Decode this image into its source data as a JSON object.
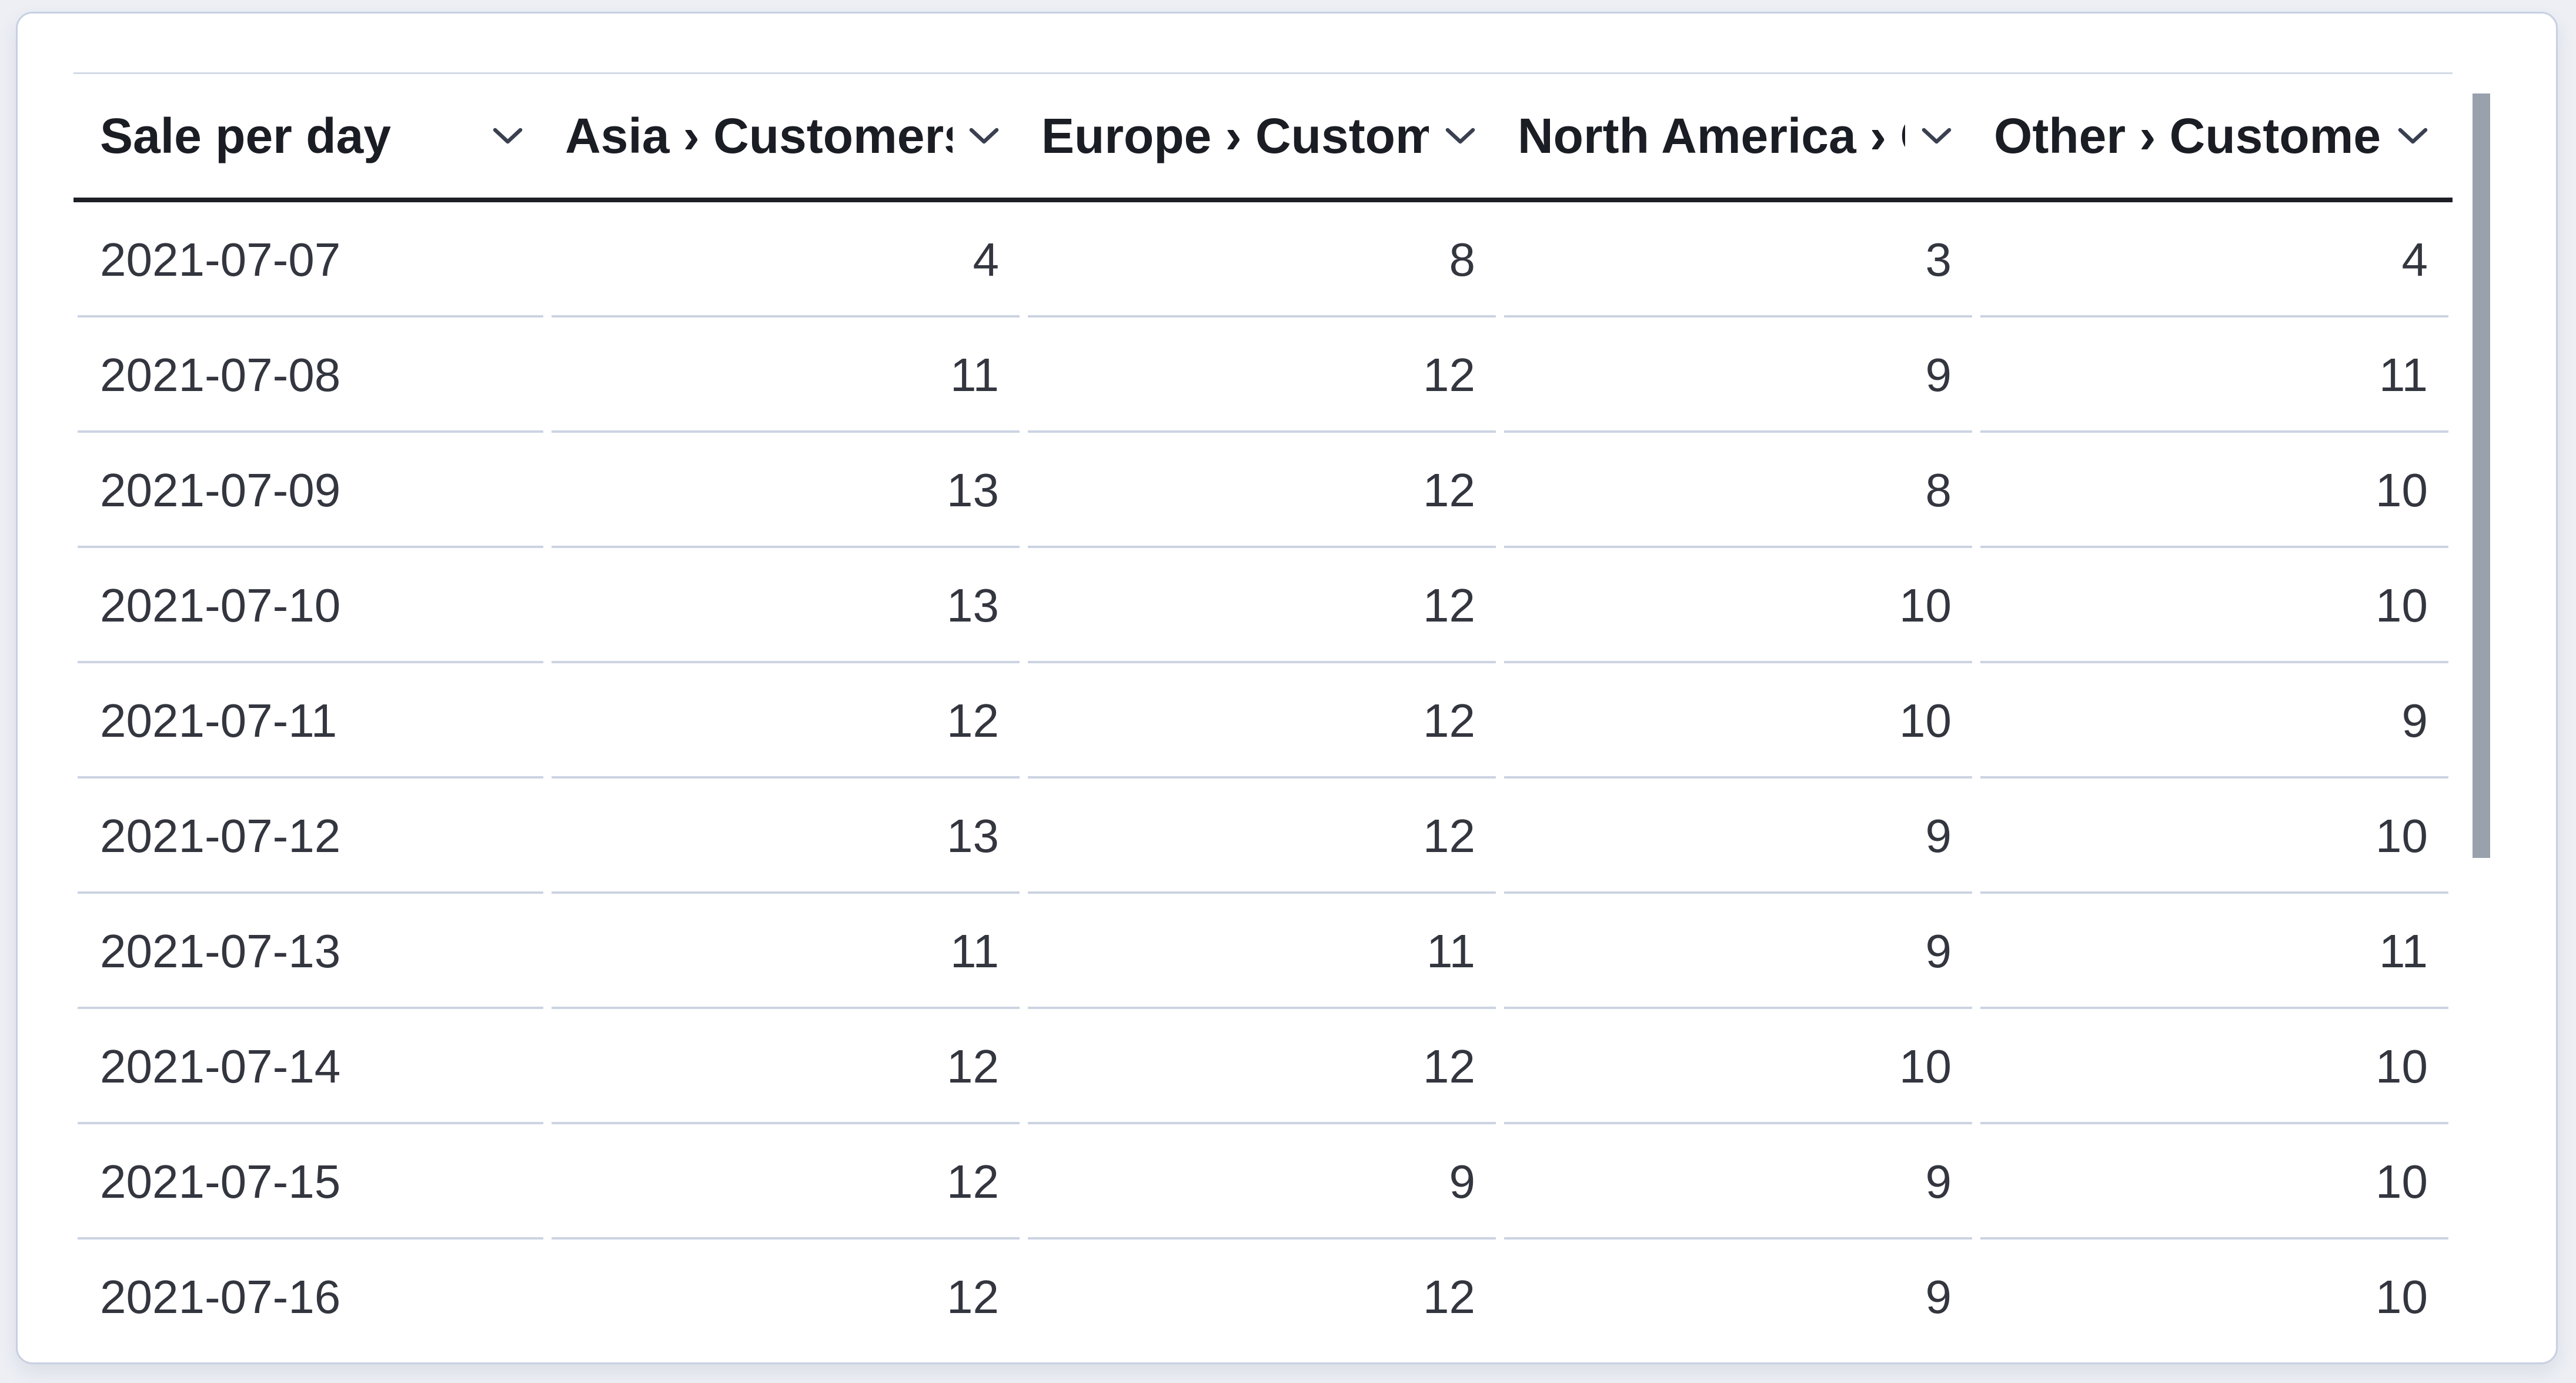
{
  "panel": {
    "type": "data-table-visualization",
    "title": "Sale per day"
  },
  "table": {
    "columns": [
      {
        "label": "Sale per day",
        "align": "left",
        "sort_icon": "chevron-down"
      },
      {
        "label": "Asia › Customers",
        "align": "right",
        "sort_icon": "chevron-down"
      },
      {
        "label": "Europe › Customers",
        "align": "right",
        "sort_icon": "chevron-down"
      },
      {
        "label": "North America › Customers",
        "align": "right",
        "sort_icon": "chevron-down"
      },
      {
        "label": "Other › Customers",
        "align": "right",
        "sort_icon": "chevron-down"
      }
    ],
    "rows": [
      [
        "2021-07-07",
        "4",
        "8",
        "3",
        "4"
      ],
      [
        "2021-07-08",
        "11",
        "12",
        "9",
        "11"
      ],
      [
        "2021-07-09",
        "13",
        "12",
        "8",
        "10"
      ],
      [
        "2021-07-10",
        "13",
        "12",
        "10",
        "10"
      ],
      [
        "2021-07-11",
        "12",
        "12",
        "10",
        "9"
      ],
      [
        "2021-07-12",
        "13",
        "12",
        "9",
        "10"
      ],
      [
        "2021-07-13",
        "11",
        "11",
        "9",
        "11"
      ],
      [
        "2021-07-14",
        "12",
        "12",
        "10",
        "10"
      ],
      [
        "2021-07-15",
        "12",
        "9",
        "9",
        "10"
      ],
      [
        "2021-07-16",
        "12",
        "12",
        "9",
        "10"
      ]
    ]
  },
  "chart_data": {
    "type": "table",
    "title": "Sale per day",
    "columns": [
      "Sale per day",
      "Asia › Customers",
      "Europe › Customers",
      "North America › Customers",
      "Other › Customers"
    ],
    "rows": [
      [
        "2021-07-07",
        4,
        8,
        3,
        4
      ],
      [
        "2021-07-08",
        11,
        12,
        9,
        11
      ],
      [
        "2021-07-09",
        13,
        12,
        8,
        10
      ],
      [
        "2021-07-10",
        13,
        12,
        10,
        10
      ],
      [
        "2021-07-11",
        12,
        12,
        10,
        9
      ],
      [
        "2021-07-12",
        13,
        12,
        9,
        10
      ],
      [
        "2021-07-13",
        11,
        11,
        9,
        11
      ],
      [
        "2021-07-14",
        12,
        12,
        10,
        10
      ],
      [
        "2021-07-15",
        12,
        9,
        9,
        10
      ],
      [
        "2021-07-16",
        12,
        12,
        9,
        10
      ]
    ],
    "notes": "Vertical scrollbar indicates more rows below 2021-07-16; only these 10 rows are visible."
  },
  "icons": {
    "column_menu": "chevron-down"
  },
  "colors": {
    "page_background": "#edeff5",
    "card_background": "#ffffff",
    "card_border": "#c7d0e2",
    "table_top_border": "#d3dae6",
    "header_underline": "#1d1f26",
    "row_separator": "#ccd3e2",
    "header_text": "#1b1d24",
    "body_text": "#33363f",
    "chevron": "#3a4050",
    "scrollbar_thumb": "#99a1ad"
  }
}
